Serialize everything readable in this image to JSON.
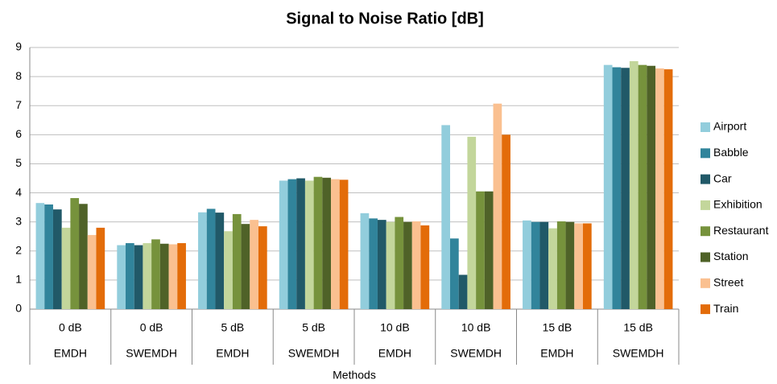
{
  "chart_data": {
    "type": "bar",
    "title": "Signal to Noise Ratio [dB]",
    "x_label": "Methods",
    "categories": [
      "0 dB",
      "0 dB",
      "5 dB",
      "5 dB",
      "10 dB",
      "10 dB",
      "15 dB",
      "15 dB"
    ],
    "category_groups": [
      "EMDH",
      "SWEMDH",
      "EMDH",
      "SWEMDH",
      "EMDH",
      "SWEMDH",
      "EMDH",
      "SWEMDH"
    ],
    "series": [
      {
        "name": "Airport",
        "color": "#92cddc",
        "values": [
          3.65,
          2.2,
          3.33,
          4.42,
          3.3,
          6.33,
          3.05,
          8.4
        ]
      },
      {
        "name": "Babble",
        "color": "#31849b",
        "values": [
          3.6,
          2.27,
          3.45,
          4.47,
          3.12,
          2.43,
          3.0,
          8.32
        ]
      },
      {
        "name": "Car",
        "color": "#215968",
        "values": [
          3.43,
          2.2,
          3.32,
          4.5,
          3.07,
          1.18,
          3.0,
          8.3
        ]
      },
      {
        "name": "Exhibition",
        "color": "#c3d69b",
        "values": [
          2.8,
          2.27,
          2.68,
          4.42,
          3.0,
          5.93,
          2.78,
          8.53
        ]
      },
      {
        "name": "Restaurant",
        "color": "#76923c",
        "values": [
          3.82,
          2.4,
          3.27,
          4.55,
          3.17,
          4.05,
          3.02,
          8.4
        ]
      },
      {
        "name": "Station",
        "color": "#4f6228",
        "values": [
          3.62,
          2.25,
          2.93,
          4.52,
          3.0,
          4.05,
          3.0,
          8.37
        ]
      },
      {
        "name": "Street",
        "color": "#fac090",
        "values": [
          2.55,
          2.23,
          3.07,
          4.47,
          3.02,
          7.07,
          2.95,
          8.28
        ]
      },
      {
        "name": "Train",
        "color": "#e36c09",
        "values": [
          2.8,
          2.27,
          2.85,
          4.45,
          2.88,
          6.0,
          2.95,
          8.25
        ]
      }
    ],
    "ylim": [
      0,
      9
    ],
    "yticks": [
      0,
      1,
      2,
      3,
      4,
      5,
      6,
      7,
      8,
      9
    ],
    "grid": true,
    "legend": "right"
  }
}
